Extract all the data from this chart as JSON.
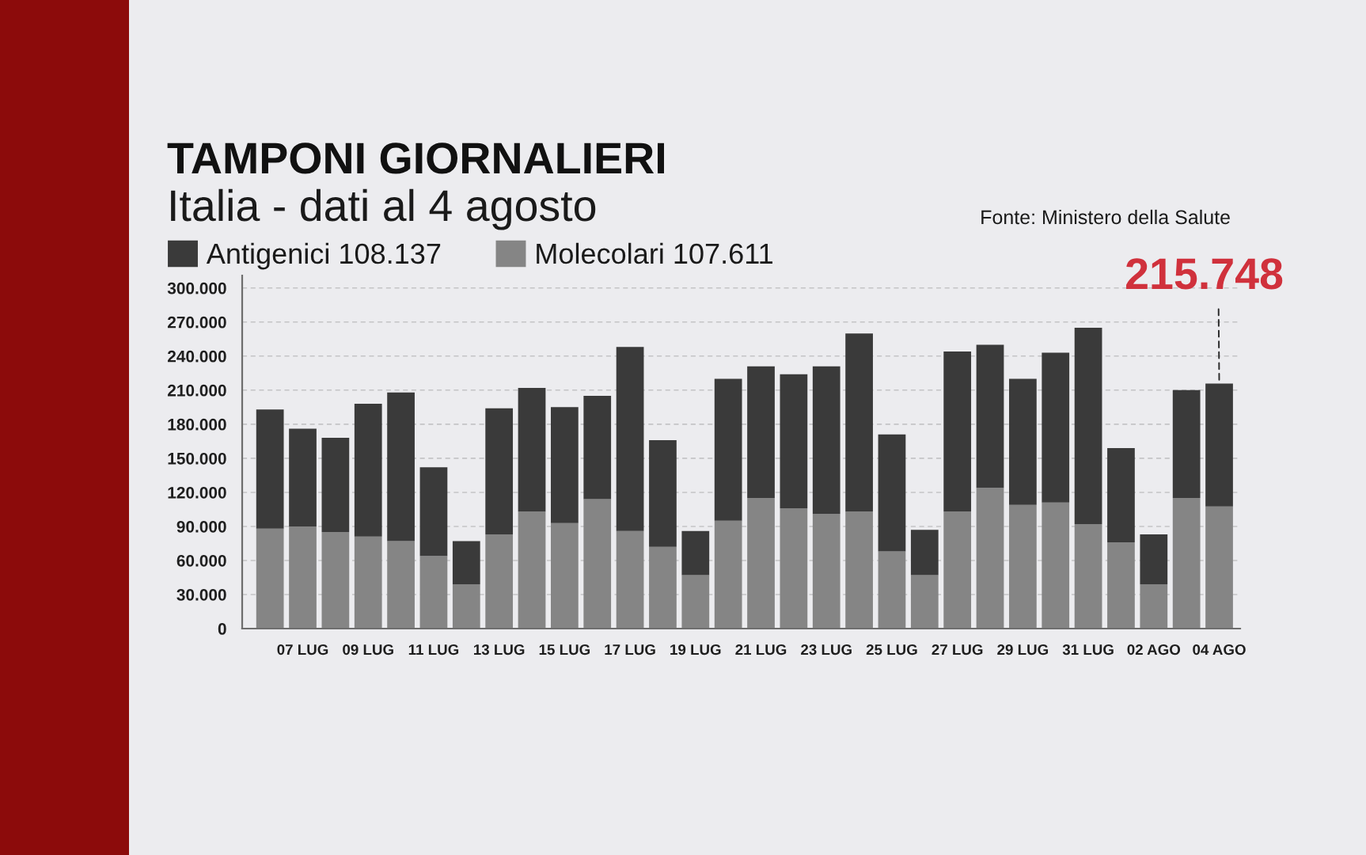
{
  "chart_data": {
    "type": "bar",
    "title": "TAMPONI GIORNALIERI",
    "subtitle": "Italia - dati al 4 agosto",
    "annotations": [
      "Fonte: Ministero della Salute",
      {
        "text": "215.748",
        "x": "04 AGO",
        "y": 215748
      }
    ],
    "categories": [
      null,
      "07 LUG",
      null,
      "09 LUG",
      null,
      "11 LUG",
      null,
      "13 LUG",
      null,
      "15 LUG",
      null,
      "17 LUG",
      null,
      "19 LUG",
      null,
      "21 LUG",
      null,
      "23 LUG",
      null,
      "25 LUG",
      null,
      "27 LUG",
      null,
      "29 LUG",
      null,
      "31 LUG",
      null,
      "02 AGO",
      null,
      "04 AGO"
    ],
    "stacked": true,
    "series": [
      {
        "name": "Molecolari 107.611",
        "color": "#858585",
        "values": [
          88000,
          90000,
          85000,
          81000,
          77000,
          64000,
          39000,
          83000,
          103000,
          93000,
          114000,
          86000,
          72000,
          47000,
          95000,
          115000,
          106000,
          101000,
          103000,
          68000,
          47000,
          103000,
          124000,
          109000,
          111000,
          92000,
          76000,
          39000,
          115000,
          107611
        ]
      },
      {
        "name": "Antigenici 108.137",
        "color": "#3a3a3a",
        "values": [
          105000,
          86000,
          83000,
          117000,
          131000,
          78000,
          38000,
          111000,
          109000,
          102000,
          91000,
          162000,
          94000,
          39000,
          125000,
          116000,
          118000,
          130000,
          157000,
          103000,
          40000,
          141000,
          126000,
          111000,
          132000,
          173000,
          83000,
          44000,
          95000,
          108137
        ]
      }
    ],
    "ylim": [
      0,
      311000
    ],
    "yticks": [
      0,
      {
        "value": 30000,
        "label": "30.000"
      },
      {
        "value": 60000,
        "label": "60.000"
      },
      {
        "value": 90000,
        "label": "90.000"
      },
      {
        "value": 120000,
        "label": "120.000"
      },
      {
        "value": 150000,
        "label": "150.000"
      },
      {
        "value": 180000,
        "label": "180.000"
      },
      {
        "value": 210000,
        "label": "210.000"
      },
      {
        "value": 240000,
        "label": "240.000"
      },
      {
        "value": 270000,
        "label": "270.000"
      },
      {
        "value": 300000,
        "label": "300.000"
      }
    ],
    "grid": "y",
    "legend": "top left"
  }
}
